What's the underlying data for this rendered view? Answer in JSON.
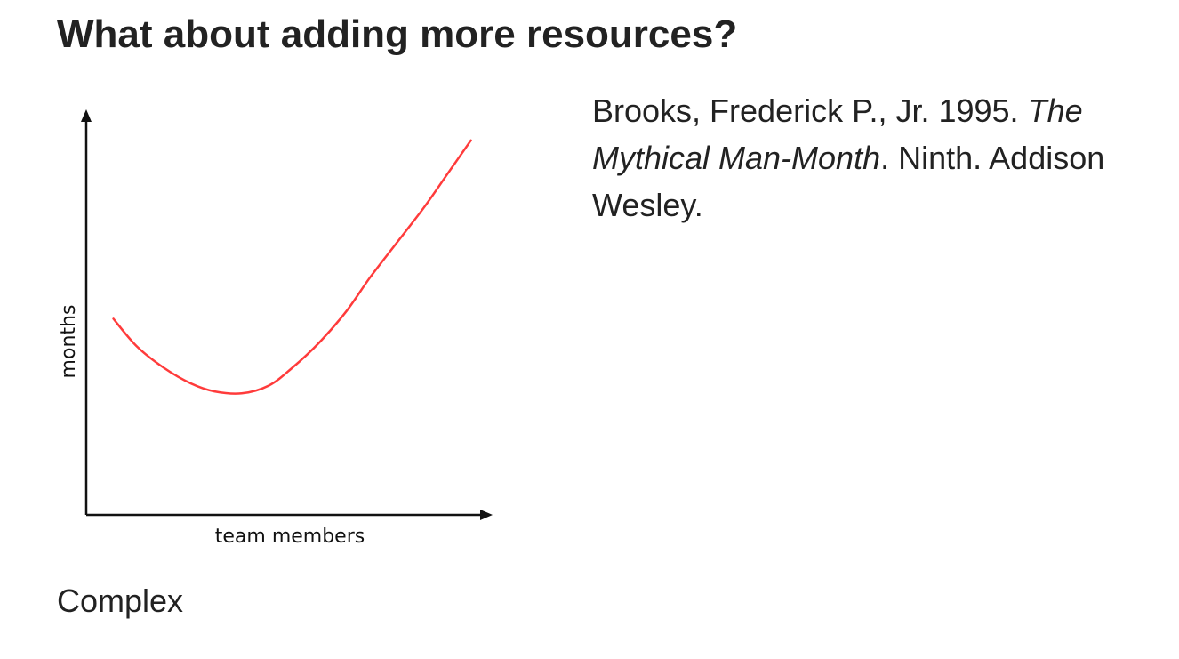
{
  "slide": {
    "title": "What about adding more resources?",
    "caption": "Complex"
  },
  "reference": {
    "authors_year": "Brooks, Frederick P., Jr. 1995.",
    "book_title": "The Mythical Man-Month",
    "details": ". Ninth. Addison Wesley."
  },
  "chart_data": {
    "type": "line",
    "xlabel": "team members",
    "ylabel": "months",
    "x_ticks": [],
    "y_ticks": [],
    "grid": false,
    "legend": "none",
    "xlim": [
      0,
      10
    ],
    "ylim": [
      0,
      10
    ],
    "series": [
      {
        "color": "#ff3b3b",
        "x": [
          0.7,
          1.3,
          2.0,
          2.7,
          3.3,
          4.0,
          4.7,
          5.3,
          6.0,
          6.7,
          7.3,
          8.0,
          8.7,
          9.3,
          9.9
        ],
        "y": [
          5.0,
          4.3,
          3.75,
          3.35,
          3.15,
          3.1,
          3.3,
          3.75,
          4.4,
          5.2,
          6.05,
          6.95,
          7.85,
          8.7,
          9.55
        ]
      }
    ],
    "colors": {
      "axis": "#111111",
      "series": "#ff3b3b"
    }
  }
}
